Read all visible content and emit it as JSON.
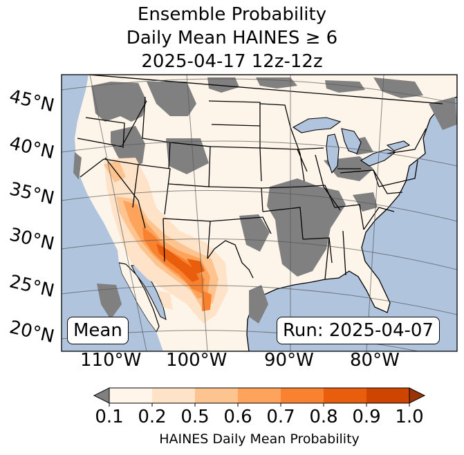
{
  "title": {
    "line1": "Ensemble Probability",
    "line2": "Daily Mean HAINES ≥ 6",
    "line3": "2025-04-17 12z-12z"
  },
  "map": {
    "projection": "lambert-conformal",
    "region": "CONUS",
    "latitude_labels": [
      "45°N",
      "40°N",
      "35°N",
      "30°N",
      "25°N",
      "20°N"
    ],
    "longitude_labels": [
      "110°W",
      "100°W",
      "90°W",
      "80°W"
    ],
    "colors": {
      "ocean": "#b0c4de",
      "land_low": "#fef5ea",
      "missing": "#808080",
      "border": "#000000",
      "graticule": "#555555"
    },
    "boxes": {
      "left": "Mean",
      "right": "Run: 2025-04-07"
    }
  },
  "colorbar": {
    "ticks": [
      "0.1",
      "0.2",
      "0.5",
      "0.6",
      "0.7",
      "0.8",
      "0.9",
      "1.0"
    ],
    "colors": [
      "#fff5eb",
      "#fee3c8",
      "#fdc48f",
      "#fda35c",
      "#f8822f",
      "#e95e0d",
      "#ce4401"
    ],
    "under_color": "#808080",
    "over_color": "#9a3503",
    "label": "HAINES Daily Mean Probability"
  }
}
